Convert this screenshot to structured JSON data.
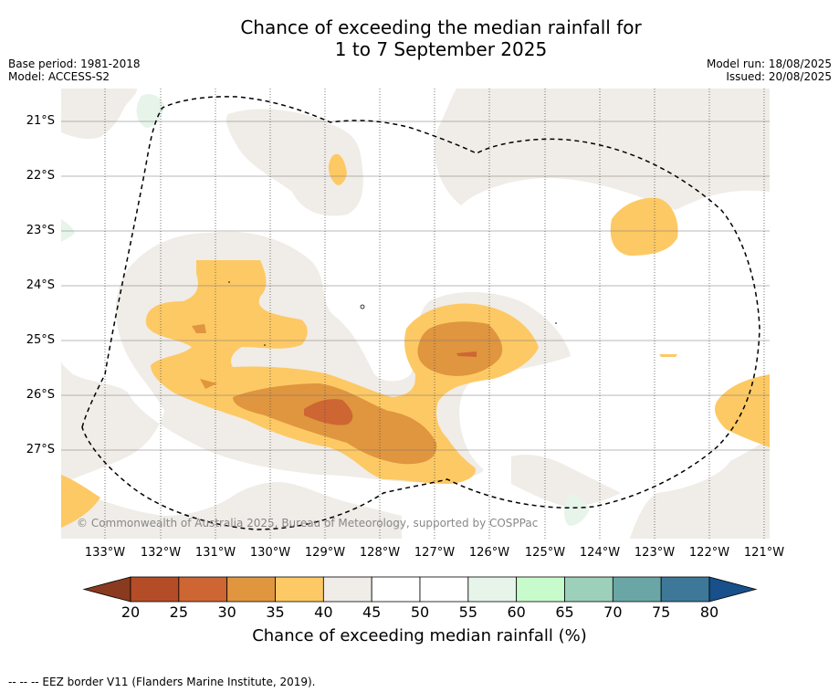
{
  "title_line1": "Chance of exceeding the median rainfall for",
  "title_line2": "1 to 7 September 2025",
  "base_period": "Base period: 1981-2018",
  "model": "Model: ACCESS-S2",
  "model_run": "Model run: 18/08/2025",
  "issued": "Issued: 20/08/2025",
  "copyright": "© Commonwealth of Australia 2025, Bureau of Meteorology, supported by COSPPac",
  "lat_labels": [
    "21°S",
    "22°S",
    "23°S",
    "24°S",
    "25°S",
    "26°S",
    "27°S"
  ],
  "lon_labels": [
    "133°W",
    "132°W",
    "131°W",
    "130°W",
    "129°W",
    "128°W",
    "127°W",
    "126°W",
    "125°W",
    "124°W",
    "123°W",
    "122°W",
    "121°W"
  ],
  "colorbar": {
    "ticks": [
      "20",
      "25",
      "30",
      "35",
      "40",
      "45",
      "50",
      "55",
      "60",
      "65",
      "70",
      "75",
      "80"
    ],
    "label": "Chance of exceeding median rainfall (%)",
    "colors": {
      "under": "#8a3b1f",
      "20-25": "#b44d27",
      "25-30": "#cd6633",
      "30-35": "#e0953f",
      "35-40": "#fdc964",
      "40-45": "#f0ece7",
      "45-50": "#ffffff",
      "50-55": "#ffffff",
      "55-60": "#e6f4e9",
      "60-65": "#c7fbcb",
      "65-70": "#9dd0bb",
      "70-75": "#6aa6a6",
      "75-80": "#3d7898",
      "over": "#17508a"
    }
  },
  "footnote": "--  --  -- EEZ border V11 (Flanders Marine Institute, 2019)."
}
